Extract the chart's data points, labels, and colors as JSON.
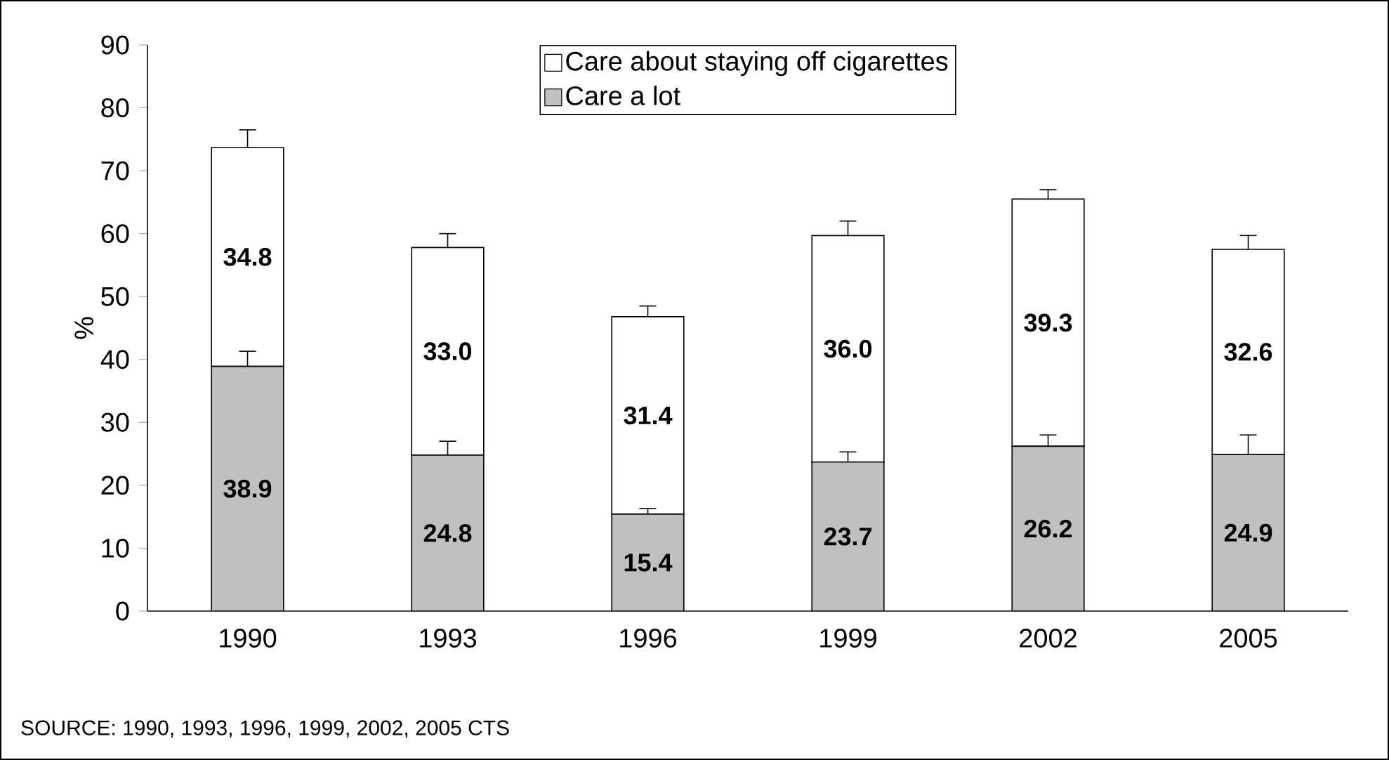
{
  "chart_data": {
    "type": "bar",
    "stacked": true,
    "categories": [
      "1990",
      "1993",
      "1996",
      "1999",
      "2002",
      "2005"
    ],
    "series": [
      {
        "name": "Care a lot",
        "color": "#c0c0c0",
        "values": [
          38.9,
          24.8,
          15.4,
          23.7,
          26.2,
          24.9
        ],
        "value_labels": [
          "38.9",
          "24.8",
          "15.4",
          "23.7",
          "26.2",
          "24.9"
        ],
        "errors": [
          [
            38.9,
            41.3
          ],
          [
            24.8,
            27.0
          ],
          [
            15.4,
            16.3
          ],
          [
            23.7,
            25.3
          ],
          [
            26.2,
            28.0
          ],
          [
            24.9,
            28.0
          ]
        ]
      },
      {
        "name": "Care about staying off cigarettes",
        "color": "#ffffff",
        "values": [
          34.8,
          33.0,
          31.4,
          36.0,
          39.3,
          32.6
        ],
        "value_labels": [
          "34.8",
          "33.0",
          "31.4",
          "36.0",
          "39.3",
          "32.6"
        ],
        "errors": [
          [
            73.7,
            76.5
          ],
          [
            57.8,
            60.0
          ],
          [
            46.8,
            48.5
          ],
          [
            59.7,
            62.0
          ],
          [
            65.5,
            67.0
          ],
          [
            57.5,
            59.7
          ]
        ]
      }
    ],
    "ylabel": "%",
    "ylim": [
      0,
      90
    ],
    "yticks": [
      0,
      10,
      20,
      30,
      40,
      50,
      60,
      70,
      80,
      90
    ],
    "legend": "top",
    "grid": false,
    "annotations": [
      "SOURCE: 1990, 1993, 1996, 1999, 2002, 2005 CTS"
    ]
  }
}
